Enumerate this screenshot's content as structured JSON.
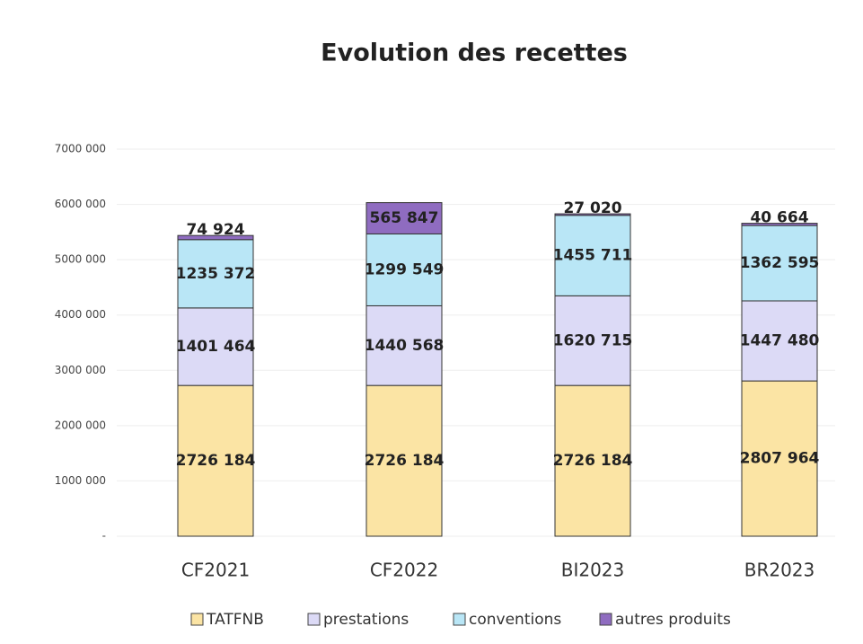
{
  "chart_data": {
    "type": "stacked_bar",
    "title": "Evolution des recettes",
    "categories": [
      "CF2021",
      "CF2022",
      "BI2023",
      "BR2023"
    ],
    "series": [
      {
        "name": "TATFNB",
        "color": "#fbe4a4",
        "values": [
          2726184,
          2726184,
          2726184,
          2807964
        ],
        "value_labels": [
          "2726 184",
          "2726 184",
          "2726 184",
          "2807 964"
        ]
      },
      {
        "name": "prestations",
        "color": "#dcdaf6",
        "values": [
          1401464,
          1440568,
          1620715,
          1447480
        ],
        "value_labels": [
          "1401 464",
          "1440 568",
          "1620 715",
          "1447 480"
        ]
      },
      {
        "name": "conventions",
        "color": "#b9e6f6",
        "values": [
          1235372,
          1299549,
          1455711,
          1362595
        ],
        "value_labels": [
          "1235 372",
          "1299 549",
          "1455 711",
          "1362 595"
        ]
      },
      {
        "name": "autres produits",
        "color": "#8f6cc0",
        "values": [
          74924,
          565847,
          27020,
          40664
        ],
        "value_labels": [
          "74 924",
          "565 847",
          "27 020",
          "40 664"
        ]
      }
    ],
    "ylim": [
      0,
      7000000
    ],
    "yticks": [
      {
        "value": 0,
        "label": "-"
      },
      {
        "value": 1000000,
        "label": "1000 000"
      },
      {
        "value": 2000000,
        "label": "2000 000"
      },
      {
        "value": 3000000,
        "label": "3000 000"
      },
      {
        "value": 4000000,
        "label": "4000 000"
      },
      {
        "value": 5000000,
        "label": "5000 000"
      },
      {
        "value": 6000000,
        "label": "6000 000"
      },
      {
        "value": 7000000,
        "label": "7000 000"
      }
    ],
    "grid": true
  }
}
